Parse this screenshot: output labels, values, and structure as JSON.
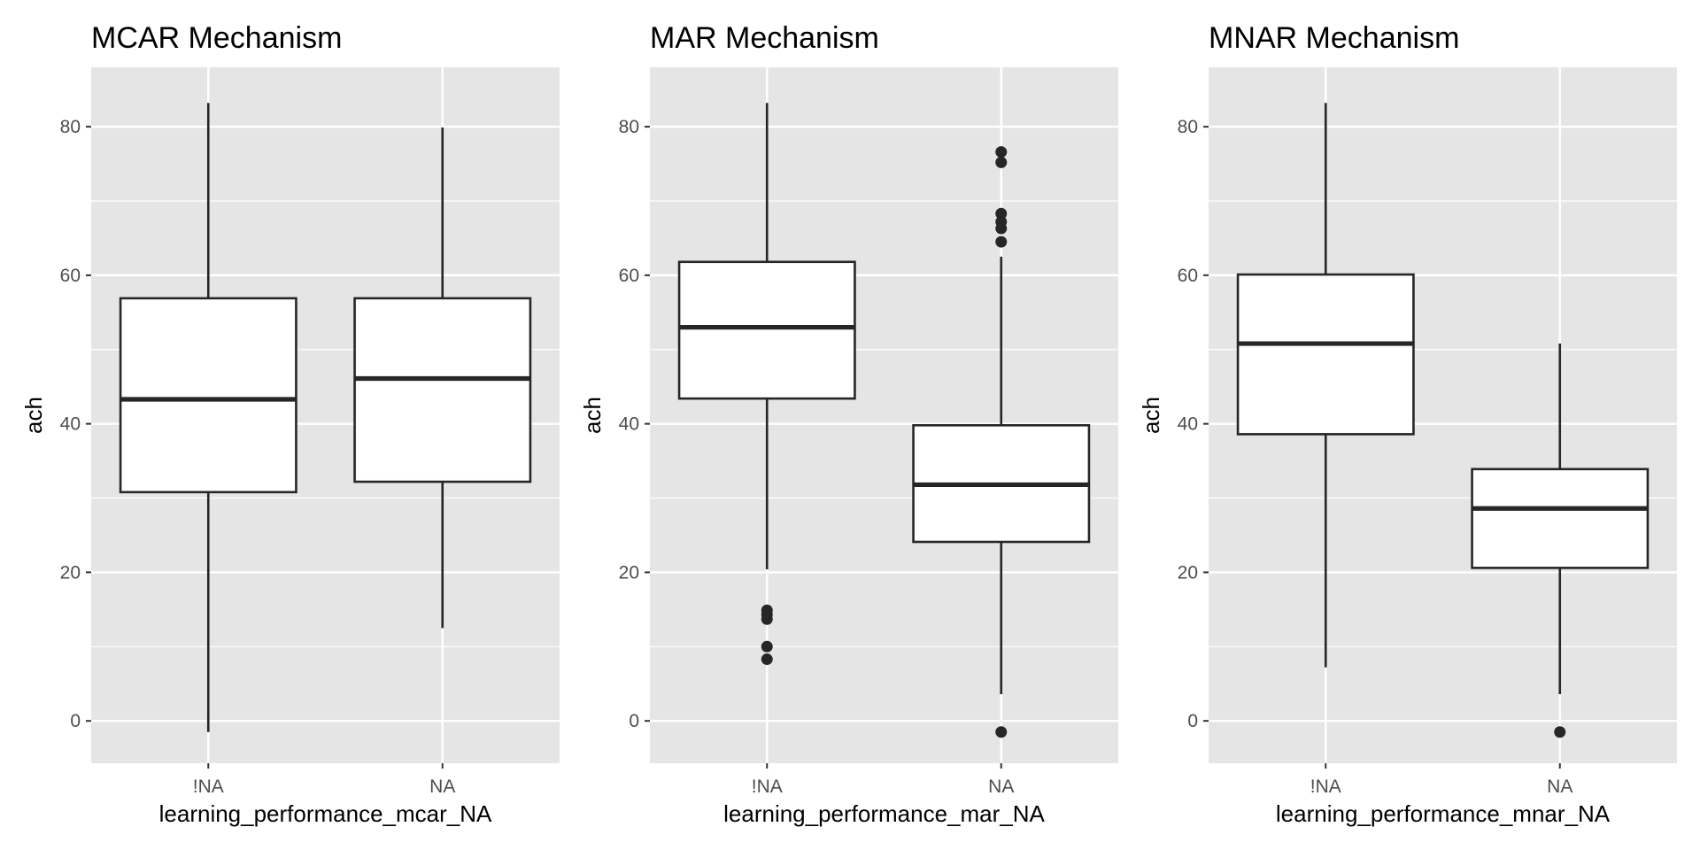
{
  "chart_data": [
    {
      "type": "box",
      "title": "MCAR Mechanism",
      "xlabel": "learning_performance_mcar_NA",
      "ylabel": "ach",
      "categories": [
        "!NA",
        "NA"
      ],
      "yticks": [
        0,
        20,
        40,
        60,
        80
      ],
      "ylim": [
        -5.7,
        88
      ],
      "grid": true,
      "boxes": [
        {
          "category": "!NA",
          "min": -1.5,
          "q1": 30.8,
          "median": 43.3,
          "q3": 56.9,
          "max": 83.2,
          "outliers": []
        },
        {
          "category": "NA",
          "min": 12.5,
          "q1": 32.2,
          "median": 46.1,
          "q3": 56.9,
          "max": 79.9,
          "outliers": []
        }
      ]
    },
    {
      "type": "box",
      "title": "MAR Mechanism",
      "xlabel": "learning_performance_mar_NA",
      "ylabel": "ach",
      "categories": [
        "!NA",
        "NA"
      ],
      "yticks": [
        0,
        20,
        40,
        60,
        80
      ],
      "ylim": [
        -5.7,
        88
      ],
      "grid": true,
      "boxes": [
        {
          "category": "!NA",
          "min": 20.4,
          "q1": 43.4,
          "median": 53.0,
          "q3": 61.8,
          "max": 83.2,
          "outliers": [
            14.9,
            14.3,
            13.7,
            10.0,
            8.3
          ]
        },
        {
          "category": "NA",
          "min": 3.6,
          "q1": 24.1,
          "median": 31.8,
          "q3": 39.8,
          "max": 62.5,
          "outliers": [
            76.6,
            75.2,
            68.3,
            67.2,
            66.3,
            64.5,
            -1.5
          ]
        }
      ]
    },
    {
      "type": "box",
      "title": "MNAR Mechanism",
      "xlabel": "learning_performance_mnar_NA",
      "ylabel": "ach",
      "categories": [
        "!NA",
        "NA"
      ],
      "yticks": [
        0,
        20,
        40,
        60,
        80
      ],
      "ylim": [
        -5.7,
        88
      ],
      "grid": true,
      "boxes": [
        {
          "category": "!NA",
          "min": 7.2,
          "q1": 38.6,
          "median": 50.8,
          "q3": 60.1,
          "max": 83.2,
          "outliers": []
        },
        {
          "category": "NA",
          "min": 3.6,
          "q1": 20.6,
          "median": 28.6,
          "q3": 33.9,
          "max": 50.8,
          "outliers": [
            -1.5
          ]
        }
      ]
    }
  ]
}
